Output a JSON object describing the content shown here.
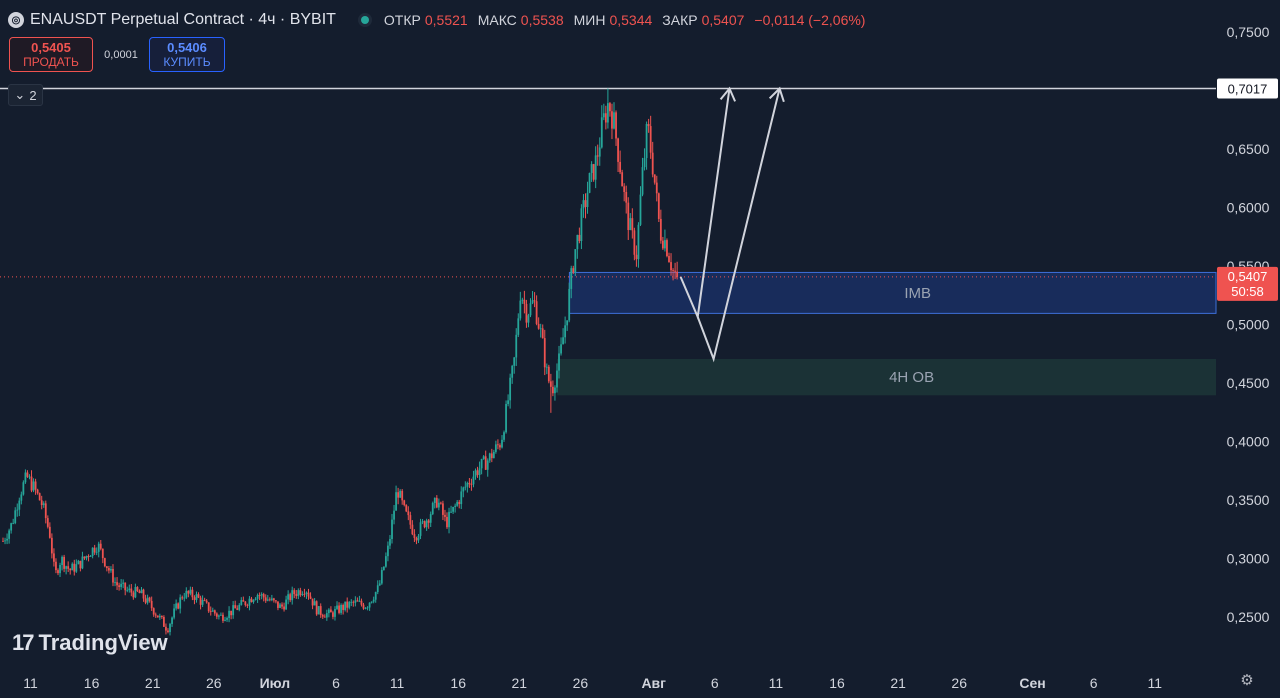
{
  "header": {
    "title": "ENAUSDT Perpetual Contract · 4ч · BYBIT",
    "open_label": "ОТКР",
    "open": "0,5521",
    "high_label": "МАКС",
    "high": "0,5538",
    "low_label": "МИН",
    "low": "0,5344",
    "close_label": "ЗАКР",
    "close": "0,5407",
    "change": "−0,0114 (−2,06%)"
  },
  "trade": {
    "sell_price": "0,5405",
    "sell_label": "ПРОДАТЬ",
    "spread": "0,0001",
    "buy_price": "0,5406",
    "buy_label": "КУПИТЬ"
  },
  "layers_count": "2",
  "logo_text": "TradingView",
  "colors": {
    "bg": "#141d2d",
    "up": "#26a69a",
    "down": "#ef5350",
    "text": "#d1d4dc"
  },
  "chart_data": {
    "type": "candlestick",
    "y_range": [
      0.23,
      0.765
    ],
    "y_ticks": [
      {
        "value": 0.75,
        "label": "0,7500"
      },
      {
        "value": 0.65,
        "label": "0,6500"
      },
      {
        "value": 0.6,
        "label": "0,6000"
      },
      {
        "value": 0.55,
        "label": "0,5500"
      },
      {
        "value": 0.5,
        "label": "0,5000"
      },
      {
        "value": 0.45,
        "label": "0,4500"
      },
      {
        "value": 0.4,
        "label": "0,4000"
      },
      {
        "value": 0.35,
        "label": "0,3500"
      },
      {
        "value": 0.3,
        "label": "0,3000"
      },
      {
        "value": 0.25,
        "label": "0,2500"
      }
    ],
    "x_ticks": [
      {
        "day": 11,
        "label": "11"
      },
      {
        "day": 16,
        "label": "16"
      },
      {
        "day": 21,
        "label": "21"
      },
      {
        "day": 26,
        "label": "26"
      },
      {
        "day": 31,
        "label": "Июл"
      },
      {
        "day": 36,
        "label": "6"
      },
      {
        "day": 41,
        "label": "11"
      },
      {
        "day": 46,
        "label": "16"
      },
      {
        "day": 51,
        "label": "21"
      },
      {
        "day": 56,
        "label": "26"
      },
      {
        "day": 62,
        "label": "Авг"
      },
      {
        "day": 67,
        "label": "6"
      },
      {
        "day": 72,
        "label": "11"
      },
      {
        "day": 77,
        "label": "16"
      },
      {
        "day": 82,
        "label": "21"
      },
      {
        "day": 87,
        "label": "26"
      },
      {
        "day": 93,
        "label": "Сен"
      },
      {
        "day": 98,
        "label": "6"
      },
      {
        "day": 103,
        "label": "11"
      }
    ],
    "x_start_day": 8.75,
    "price_path": [
      [
        8.75,
        0.315
      ],
      [
        9.5,
        0.33
      ],
      [
        10.1,
        0.355
      ],
      [
        10.7,
        0.37
      ],
      [
        11.3,
        0.36
      ],
      [
        12,
        0.345
      ],
      [
        12.6,
        0.32
      ],
      [
        13,
        0.285
      ],
      [
        13.5,
        0.3
      ],
      [
        14.2,
        0.29
      ],
      [
        15,
        0.295
      ],
      [
        15.8,
        0.305
      ],
      [
        16.5,
        0.312
      ],
      [
        17.2,
        0.295
      ],
      [
        18,
        0.278
      ],
      [
        19,
        0.272
      ],
      [
        20,
        0.27
      ],
      [
        20.8,
        0.26
      ],
      [
        21.5,
        0.25
      ],
      [
        22.2,
        0.24
      ],
      [
        22.8,
        0.255
      ],
      [
        23.5,
        0.27
      ],
      [
        24.5,
        0.268
      ],
      [
        25.5,
        0.258
      ],
      [
        26.5,
        0.25
      ],
      [
        27.5,
        0.255
      ],
      [
        28.5,
        0.262
      ],
      [
        29.5,
        0.27
      ],
      [
        30.5,
        0.265
      ],
      [
        31.5,
        0.258
      ],
      [
        32.5,
        0.27
      ],
      [
        33.5,
        0.275
      ],
      [
        34.5,
        0.255
      ],
      [
        35.5,
        0.252
      ],
      [
        36.5,
        0.258
      ],
      [
        37.5,
        0.262
      ],
      [
        38.5,
        0.26
      ],
      [
        39.5,
        0.275
      ],
      [
        40.3,
        0.31
      ],
      [
        41,
        0.36
      ],
      [
        41.6,
        0.34
      ],
      [
        42.5,
        0.32
      ],
      [
        43.5,
        0.335
      ],
      [
        44.3,
        0.35
      ],
      [
        45,
        0.33
      ],
      [
        45.8,
        0.345
      ],
      [
        46.5,
        0.36
      ],
      [
        47.5,
        0.375
      ],
      [
        48.5,
        0.385
      ],
      [
        49.5,
        0.4
      ],
      [
        50,
        0.43
      ],
      [
        50.6,
        0.47
      ],
      [
        51.1,
        0.53
      ],
      [
        51.6,
        0.51
      ],
      [
        52.2,
        0.52
      ],
      [
        52.8,
        0.49
      ],
      [
        53.3,
        0.455
      ],
      [
        53.7,
        0.445
      ],
      [
        54.3,
        0.47
      ],
      [
        54.9,
        0.51
      ],
      [
        55.5,
        0.56
      ],
      [
        56.1,
        0.59
      ],
      [
        56.7,
        0.62
      ],
      [
        57.3,
        0.64
      ],
      [
        57.8,
        0.67
      ],
      [
        58.3,
        0.69
      ],
      [
        58.7,
        0.675
      ],
      [
        59.2,
        0.64
      ],
      [
        59.7,
        0.6
      ],
      [
        60.2,
        0.575
      ],
      [
        60.6,
        0.56
      ],
      [
        61,
        0.62
      ],
      [
        61.5,
        0.67
      ],
      [
        62,
        0.63
      ],
      [
        62.5,
        0.58
      ],
      [
        63,
        0.57
      ],
      [
        63.6,
        0.545
      ],
      [
        64,
        0.5407
      ]
    ],
    "high_extreme": {
      "day": 58.3,
      "value": 0.7017
    },
    "low_extreme": {
      "day": 53.6,
      "value": 0.4245
    },
    "horizontal_line": {
      "value": 0.7017,
      "label": "0,7017"
    },
    "current_price": {
      "value": 0.5407,
      "label": "0,5407",
      "countdown": "50:58"
    },
    "zones": [
      {
        "name": "IMB",
        "from_day": 55.1,
        "to_day": 108.5,
        "top": 0.5445,
        "bottom": 0.5095,
        "color": "#2962ff"
      },
      {
        "name": "4H OB",
        "from_day": 54.1,
        "to_day": 108.5,
        "top": 0.4705,
        "bottom": 0.4395,
        "color": "#2e6b4f"
      }
    ],
    "projection_paths": [
      [
        [
          64.2,
          0.5407
        ],
        [
          65.6,
          0.5065
        ],
        [
          68.2,
          0.7017
        ]
      ],
      [
        [
          65.6,
          0.5065
        ],
        [
          66.9,
          0.4705
        ],
        [
          72.3,
          0.7017
        ]
      ]
    ]
  }
}
